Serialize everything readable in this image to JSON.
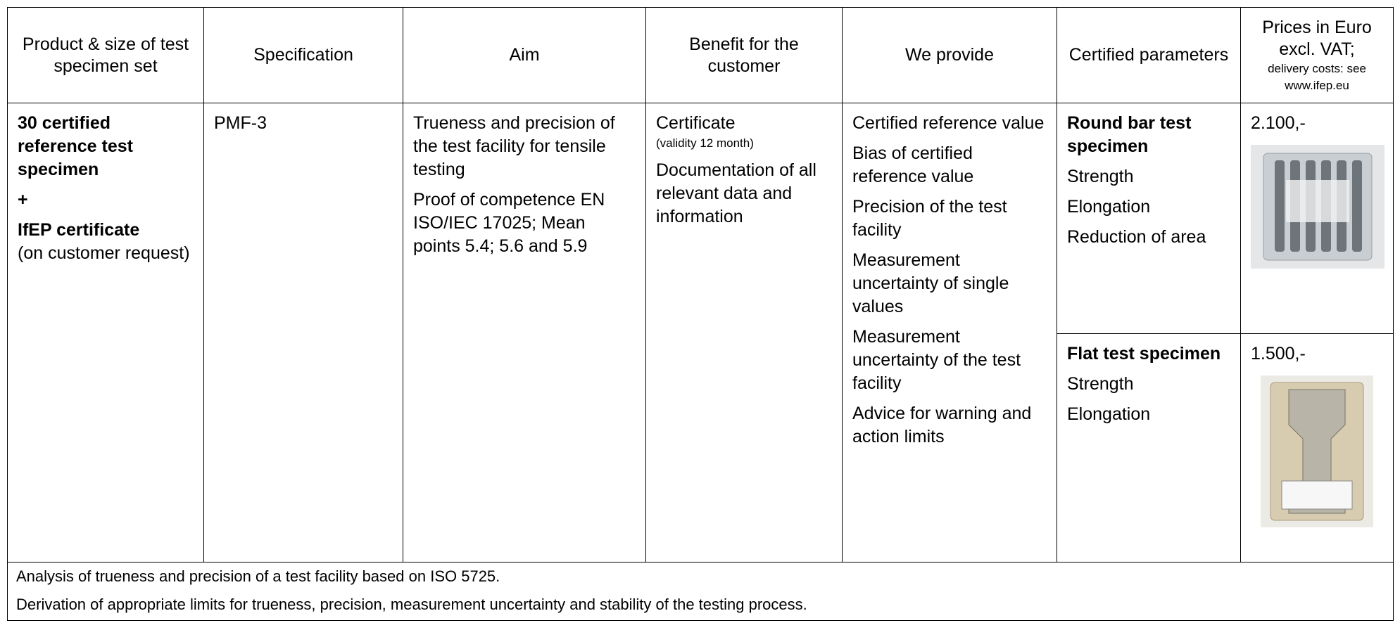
{
  "table": {
    "header": [
      "Product & size of test specimen set",
      "Specification",
      "Aim",
      "Benefit for the customer",
      "We provide",
      "Certified parameters"
    ],
    "price_header": {
      "title": "Prices in Euro excl. VAT;",
      "note": "delivery costs: see www.ifep.eu"
    },
    "product": {
      "quantity": "30 certified reference test specimen",
      "plus": "+",
      "certificate": "IfEP certificate",
      "note": "(on customer request)"
    },
    "specification": "PMF-3",
    "aim": [
      "Trueness and precision of the test facility for tensile testing",
      "Proof of competence EN ISO/IEC 17025; Mean points 5.4; 5.6 and 5.9"
    ],
    "benefit": {
      "certificate": "Certificate",
      "validity": "(validity 12 month)",
      "documentation": "Documentation of all relevant data and information"
    },
    "provide": [
      "Certified reference value",
      "Bias of certified reference value",
      "Precision of the test facility",
      "Measurement uncertainty of single values",
      "Measurement uncertainty of the test facility",
      "Advice for warning and action limits"
    ],
    "variants": [
      {
        "name": "Round bar test specimen",
        "parameters": [
          "Strength",
          "Elongation",
          "Reduction of area"
        ],
        "price": "2.100,-"
      },
      {
        "name": "Flat test specimen",
        "parameters": [
          "Strength",
          "Elongation"
        ],
        "price": "1.500,-"
      }
    ],
    "footer": [
      "Analysis of trueness and precision of a test facility based on ISO 5725.",
      "Derivation of appropriate limits for trueness, precision, measurement uncertainty and stability of the testing process."
    ]
  }
}
